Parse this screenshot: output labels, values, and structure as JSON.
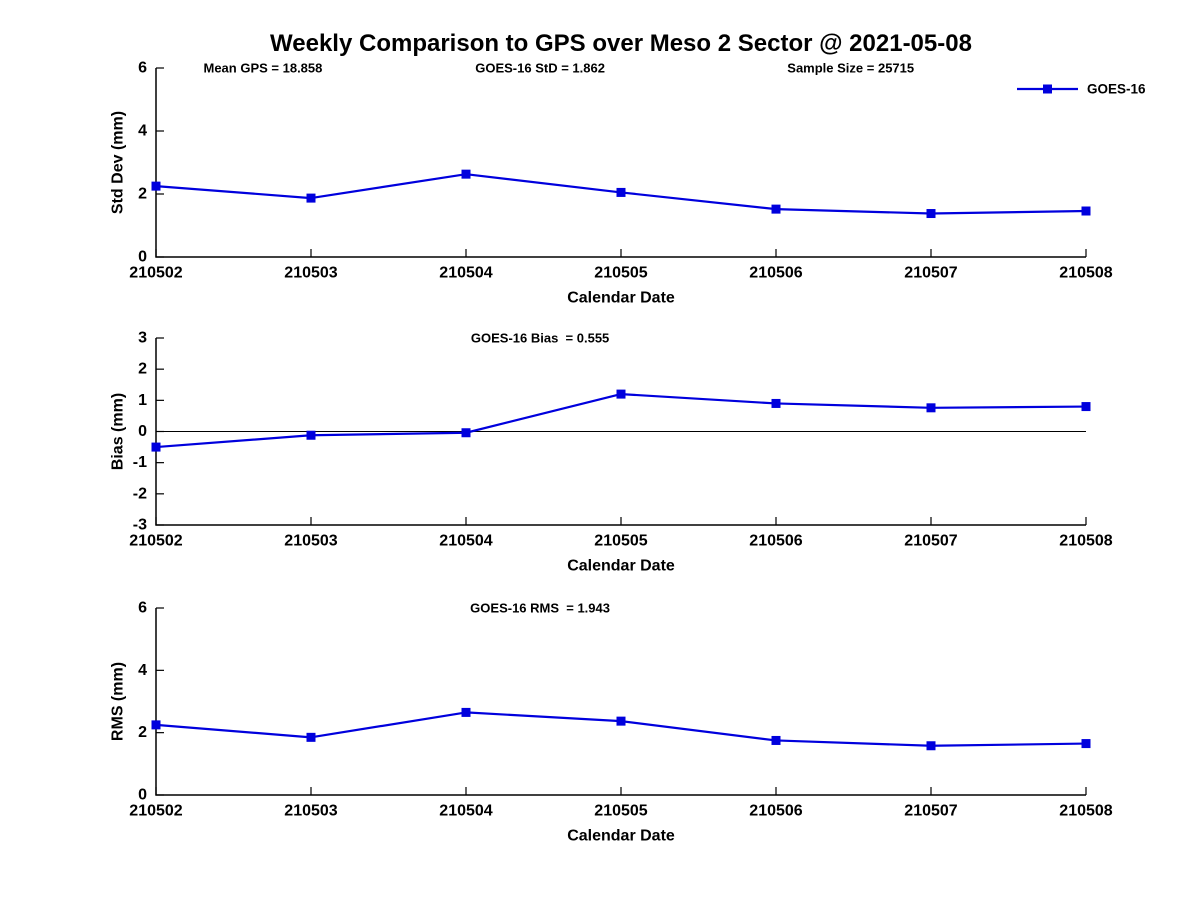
{
  "title": "Weekly Comparison to GPS over Meso 2 Sector @ 2021-05-08",
  "colors": {
    "line": "#0000DD",
    "axis": "#000000",
    "text": "#000000",
    "background": "#FFFFFF"
  },
  "legend": {
    "label": "GOES-16"
  },
  "chart_data": [
    {
      "type": "line",
      "name": "std-dev",
      "xlabel": "Calendar Date",
      "ylabel": "Std Dev (mm)",
      "categories": [
        "210502",
        "210503",
        "210504",
        "210505",
        "210506",
        "210507",
        "210508"
      ],
      "series": [
        {
          "name": "GOES-16",
          "values": [
            2.25,
            1.87,
            2.63,
            2.05,
            1.52,
            1.38,
            1.46
          ]
        }
      ],
      "ylim": [
        0,
        6
      ],
      "yticks": [
        0,
        2,
        4,
        6
      ],
      "grid": false,
      "legend_position": "top-right",
      "show_legend": true,
      "annotations": [
        {
          "text": "Mean GPS = 18.858",
          "xfrac": 0.115
        },
        {
          "text": "GOES-16 StD = 1.862",
          "xfrac": 0.413
        },
        {
          "text": "Sample Size = 25715",
          "xfrac": 0.747
        }
      ]
    },
    {
      "type": "line",
      "name": "bias",
      "xlabel": "Calendar Date",
      "ylabel": "Bias (mm)",
      "categories": [
        "210502",
        "210503",
        "210504",
        "210505",
        "210506",
        "210507",
        "210508"
      ],
      "series": [
        {
          "name": "GOES-16",
          "values": [
            -0.5,
            -0.12,
            -0.04,
            1.2,
            0.9,
            0.76,
            0.8
          ]
        }
      ],
      "ylim": [
        -3,
        3
      ],
      "yticks": [
        3,
        2,
        1,
        0,
        -1,
        -2,
        -3
      ],
      "grid": false,
      "zero_line": true,
      "show_legend": false,
      "annotations": [
        {
          "text": "GOES-16 Bias  = 0.555",
          "xfrac": 0.413
        }
      ]
    },
    {
      "type": "line",
      "name": "rms",
      "xlabel": "Calendar Date",
      "ylabel": "RMS (mm)",
      "categories": [
        "210502",
        "210503",
        "210504",
        "210505",
        "210506",
        "210507",
        "210508"
      ],
      "series": [
        {
          "name": "GOES-16",
          "values": [
            2.25,
            1.85,
            2.65,
            2.37,
            1.75,
            1.58,
            1.65
          ]
        }
      ],
      "ylim": [
        0,
        6
      ],
      "yticks": [
        0,
        2,
        4,
        6
      ],
      "grid": false,
      "show_legend": false,
      "annotations": [
        {
          "text": "GOES-16 RMS  = 1.943",
          "xfrac": 0.413
        }
      ]
    }
  ]
}
